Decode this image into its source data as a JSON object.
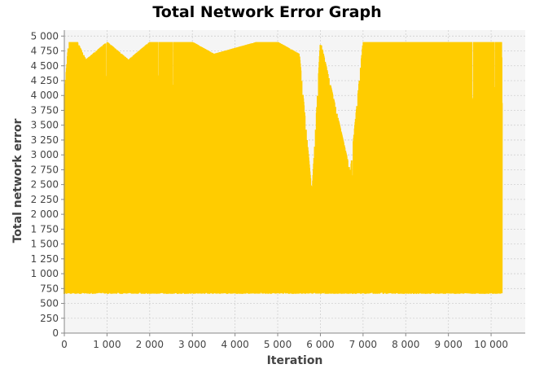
{
  "chart_data": {
    "type": "line",
    "title": "Total Network Error Graph",
    "xlabel": "Iteration",
    "ylabel": "Total network error",
    "xlim": [
      0,
      10800
    ],
    "ylim": [
      0,
      5100
    ],
    "x_ticks": [
      0,
      1000,
      2000,
      3000,
      4000,
      5000,
      6000,
      7000,
      8000,
      9000,
      10000
    ],
    "x_tick_labels": [
      "0",
      "1 000",
      "2 000",
      "3 000",
      "4 000",
      "5 000",
      "6 000",
      "7 000",
      "8 000",
      "9 000",
      "10 000"
    ],
    "y_ticks": [
      0,
      250,
      500,
      750,
      1000,
      1250,
      1500,
      1750,
      2000,
      2250,
      2500,
      2750,
      3000,
      3250,
      3500,
      3750,
      4000,
      4250,
      4500,
      4750,
      5000
    ],
    "y_tick_labels": [
      "0",
      "250",
      "500",
      "750",
      "1 000",
      "1 250",
      "1 500",
      "1 750",
      "2 000",
      "2 250",
      "2 500",
      "2 750",
      "3 000",
      "3 250",
      "3 500",
      "3 750",
      "4 000",
      "4 250",
      "4 500",
      "4 750",
      "5 000"
    ],
    "grid": true,
    "series": [
      {
        "x_start": 0,
        "x_end": 10250,
        "y_min": 660,
        "y_max": 4900,
        "color": "#ffcc00",
        "samples": [
          {
            "x": 0,
            "y": 4000
          },
          {
            "x": 100,
            "y": 4900
          },
          {
            "x": 300,
            "y": 4900
          },
          {
            "x": 500,
            "y": 4600
          },
          {
            "x": 1000,
            "y": 4900
          },
          {
            "x": 1500,
            "y": 4600
          },
          {
            "x": 2000,
            "y": 4900
          },
          {
            "x": 3000,
            "y": 4900
          },
          {
            "x": 3500,
            "y": 4700
          },
          {
            "x": 4000,
            "y": 4800
          },
          {
            "x": 4500,
            "y": 4900
          },
          {
            "x": 5000,
            "y": 4900
          },
          {
            "x": 5500,
            "y": 4700
          },
          {
            "x": 5800,
            "y": 2300
          },
          {
            "x": 6000,
            "y": 4900
          },
          {
            "x": 6700,
            "y": 2700
          },
          {
            "x": 7000,
            "y": 4900
          },
          {
            "x": 8000,
            "y": 4900
          },
          {
            "x": 9000,
            "y": 4900
          },
          {
            "x": 10000,
            "y": 4900
          },
          {
            "x": 10250,
            "y": 4900
          }
        ]
      }
    ]
  }
}
